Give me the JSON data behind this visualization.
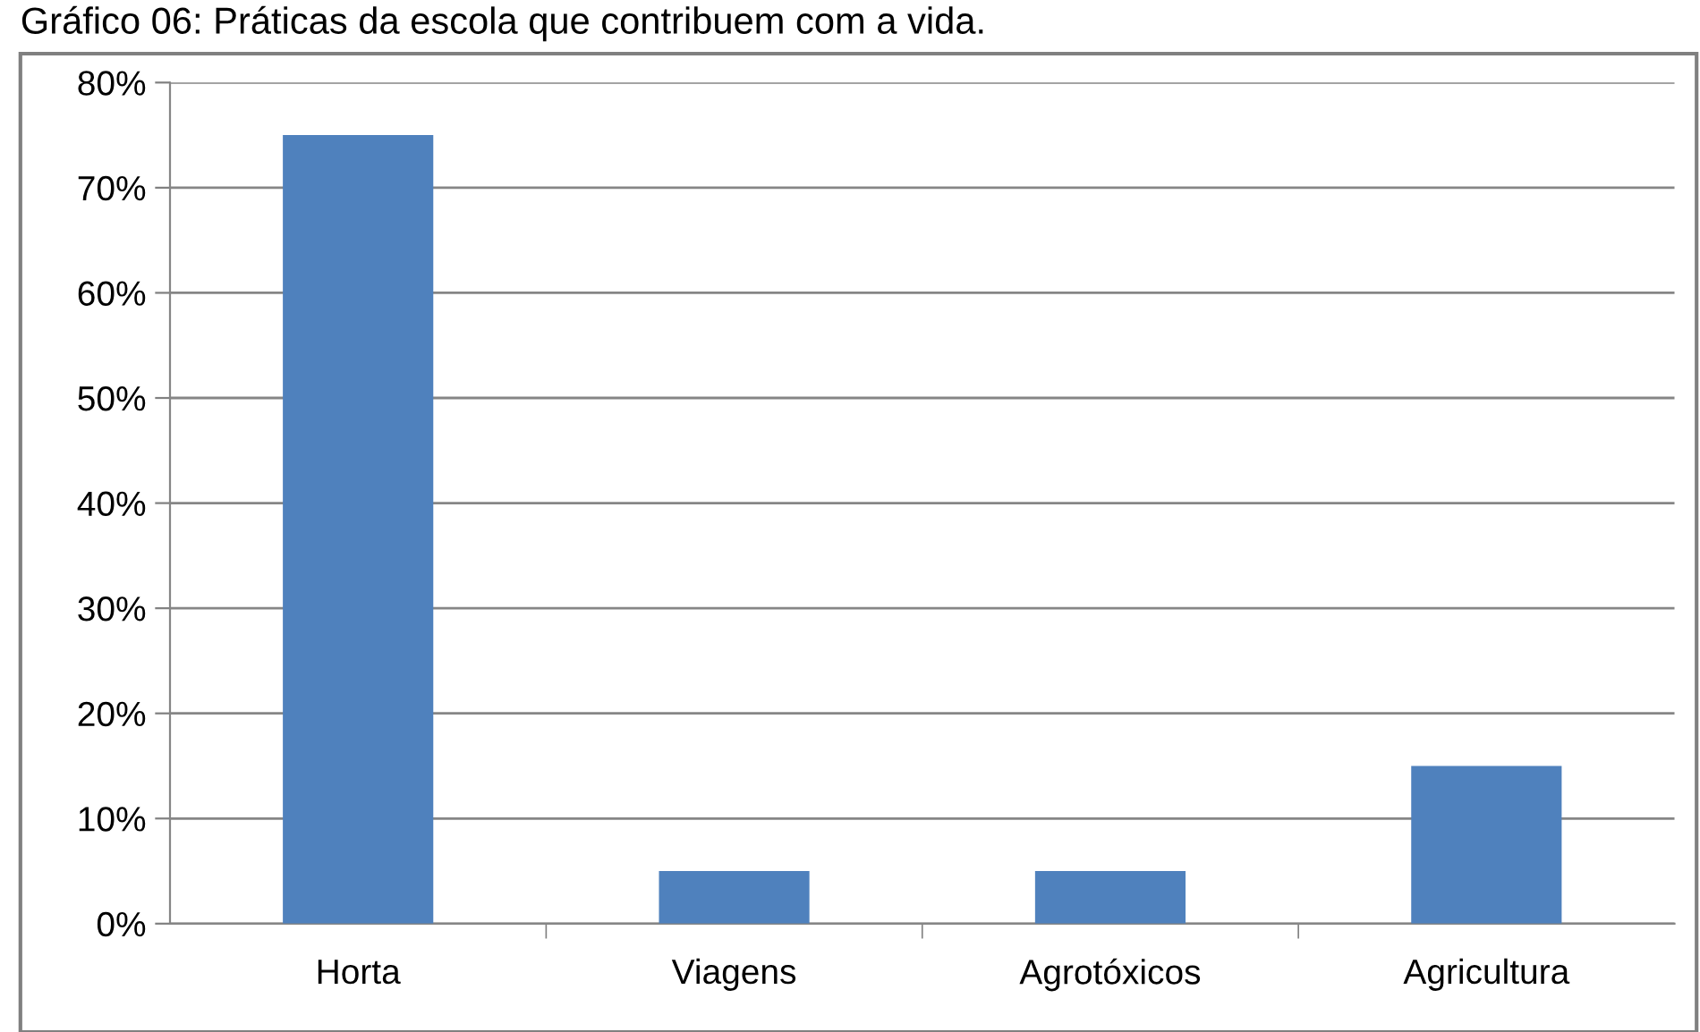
{
  "chart_data": {
    "type": "bar",
    "title": "Gráfico 06: Práticas da escola que contribuem com a vida.",
    "categories": [
      "Horta",
      "Viagens",
      "Agrotóxicos",
      "Agricultura"
    ],
    "values": [
      75,
      5,
      5,
      15
    ],
    "color": "#4f81bd",
    "ylim": [
      0,
      80
    ],
    "yticks": [
      {
        "value": 0,
        "label": "0%"
      },
      {
        "value": 10,
        "label": "10%"
      },
      {
        "value": 20,
        "label": "20%"
      },
      {
        "value": 30,
        "label": "30%"
      },
      {
        "value": 40,
        "label": "40%"
      },
      {
        "value": 50,
        "label": "50%"
      },
      {
        "value": 60,
        "label": "60%"
      },
      {
        "value": 70,
        "label": "70%"
      },
      {
        "value": 80,
        "label": "80%"
      }
    ],
    "grid": "y",
    "legend": false
  }
}
